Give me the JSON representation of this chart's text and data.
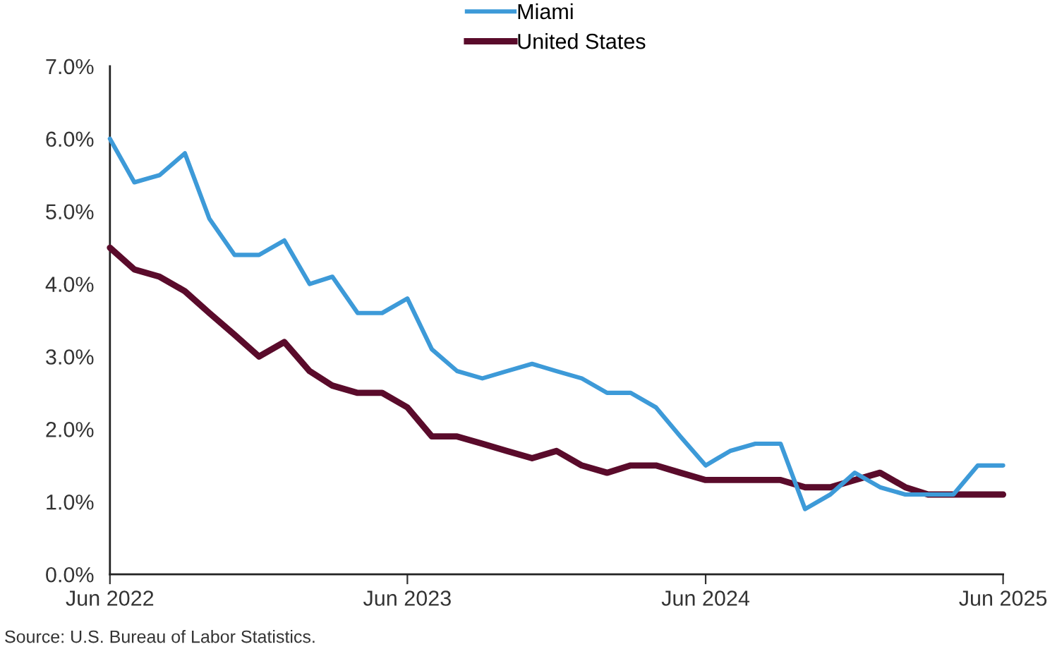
{
  "chart_data": {
    "type": "line",
    "x": [
      "2022-06",
      "2022-07",
      "2022-08",
      "2022-09",
      "2022-10",
      "2022-11",
      "2022-12",
      "2023-01",
      "2023-02",
      "2023-03",
      "2023-04",
      "2023-05",
      "2023-06",
      "2023-07",
      "2023-08",
      "2023-09",
      "2023-10",
      "2023-11",
      "2023-12",
      "2024-01",
      "2024-02",
      "2024-03",
      "2024-04",
      "2024-05",
      "2024-06",
      "2024-07",
      "2024-08",
      "2024-09",
      "2024-10",
      "2024-11",
      "2024-12",
      "2025-01",
      "2025-02",
      "2025-03",
      "2025-04",
      "2025-05",
      "2025-06"
    ],
    "series": [
      {
        "name": "Miami",
        "color": "#3d9ad8",
        "values": [
          6.0,
          5.4,
          5.5,
          5.8,
          4.9,
          4.4,
          4.4,
          4.6,
          4.0,
          4.1,
          3.6,
          3.6,
          3.8,
          3.1,
          2.8,
          2.7,
          2.8,
          2.9,
          2.8,
          2.7,
          2.5,
          2.5,
          2.3,
          1.9,
          1.5,
          1.7,
          1.8,
          1.8,
          0.9,
          1.1,
          1.4,
          1.2,
          1.1,
          1.1,
          1.1,
          1.5,
          1.5
        ]
      },
      {
        "name": "United States",
        "color": "#5a0b2b",
        "values": [
          4.5,
          4.2,
          4.1,
          3.9,
          3.6,
          3.3,
          3.0,
          3.2,
          2.8,
          2.6,
          2.5,
          2.5,
          2.3,
          1.9,
          1.9,
          1.8,
          1.7,
          1.6,
          1.7,
          1.5,
          1.4,
          1.5,
          1.5,
          1.4,
          1.3,
          1.3,
          1.3,
          1.3,
          1.2,
          1.2,
          1.3,
          1.4,
          1.2,
          1.1,
          1.1,
          1.1,
          1.1
        ]
      }
    ],
    "xlim": [
      "2022-06",
      "2025-06"
    ],
    "xticks": [
      {
        "value": "2022-06",
        "label": "Jun 2022"
      },
      {
        "value": "2023-06",
        "label": "Jun 2023"
      },
      {
        "value": "2024-06",
        "label": "Jun 2024"
      },
      {
        "value": "2025-06",
        "label": "Jun 2025"
      }
    ],
    "ylim": [
      0,
      7
    ],
    "yticks": [
      {
        "value": 0,
        "label": "0.0%"
      },
      {
        "value": 1,
        "label": "1.0%"
      },
      {
        "value": 2,
        "label": "2.0%"
      },
      {
        "value": 3,
        "label": "3.0%"
      },
      {
        "value": 4,
        "label": "4.0%"
      },
      {
        "value": 5,
        "label": "5.0%"
      },
      {
        "value": 6,
        "label": "6.0%"
      },
      {
        "value": 7,
        "label": "7.0%"
      }
    ],
    "legend": "top",
    "annotations": [
      "Source: U.S. Bureau of Labor Statistics."
    ]
  }
}
